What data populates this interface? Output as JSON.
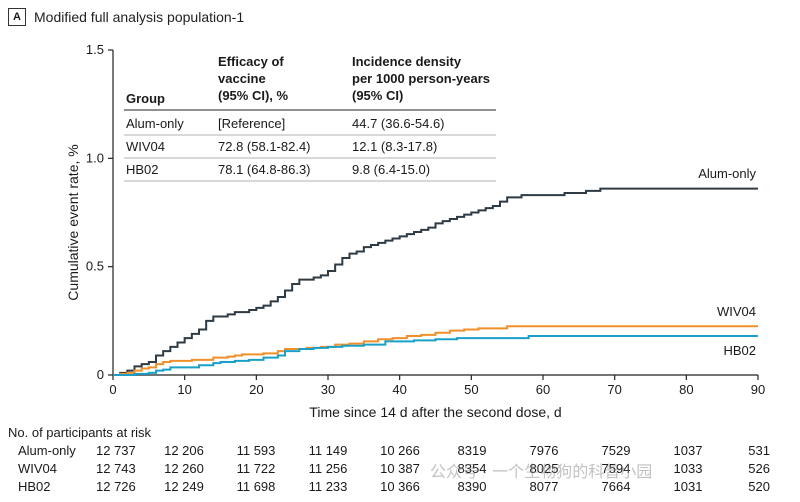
{
  "panel": {
    "letter": "A",
    "title": "Modified full analysis population-1"
  },
  "table": {
    "headers": {
      "group": "Group",
      "efficacy": [
        "Efficacy of",
        "vaccine",
        "(95% CI), %"
      ],
      "incidence": [
        "Incidence density",
        "per 1000 person-years",
        "(95% CI)"
      ]
    },
    "rows": [
      {
        "group": "Alum-only",
        "efficacy": "[Reference]",
        "incidence": "44.7 (36.6-54.6)"
      },
      {
        "group": "WIV04",
        "efficacy": "72.8 (58.1-82.4)",
        "incidence": "12.1 (8.3-17.8)"
      },
      {
        "group": "HB02",
        "efficacy": "78.1 (64.8-86.3)",
        "incidence": "9.8 (6.4-15.0)"
      }
    ]
  },
  "risk": {
    "title": "No. of participants at risk",
    "rows": [
      {
        "group": "Alum-only",
        "values": [
          "12 737",
          "12 206",
          "11 593",
          "11 149",
          "10 266",
          "8319",
          "7976",
          "7529",
          "1037",
          "531"
        ]
      },
      {
        "group": "WIV04",
        "values": [
          "12 743",
          "12 260",
          "11 722",
          "11 256",
          "10 387",
          "8354",
          "8025",
          "7594",
          "1033",
          "526"
        ]
      },
      {
        "group": "HB02",
        "values": [
          "12 726",
          "12 249",
          "11 698",
          "11 233",
          "10 366",
          "8390",
          "8077",
          "7664",
          "1031",
          "520"
        ]
      }
    ]
  },
  "watermark": "公众号 · 一个生物狗的科普小园",
  "chart_data": {
    "type": "line",
    "step": true,
    "xlabel": "Time since 14 d after the second dose, d",
    "ylabel": "Cumulative event rate, %",
    "xlim": [
      0,
      90
    ],
    "ylim": [
      0,
      1.5
    ],
    "xticks": [
      "0",
      "10",
      "20",
      "30",
      "40",
      "50",
      "60",
      "70",
      "80",
      "90"
    ],
    "yticks": [
      "0",
      "0.5",
      "1.0",
      "1.5"
    ],
    "grid": false,
    "series": [
      {
        "name": "Alum-only",
        "color": "#2e3a44",
        "points": [
          [
            0,
            0
          ],
          [
            1,
            0.01
          ],
          [
            2,
            0.02
          ],
          [
            3,
            0.04
          ],
          [
            4,
            0.05
          ],
          [
            5,
            0.06
          ],
          [
            6,
            0.09
          ],
          [
            7,
            0.11
          ],
          [
            8,
            0.13
          ],
          [
            9,
            0.15
          ],
          [
            10,
            0.17
          ],
          [
            11,
            0.19
          ],
          [
            12,
            0.21
          ],
          [
            13,
            0.25
          ],
          [
            14,
            0.27
          ],
          [
            15,
            0.27
          ],
          [
            16,
            0.28
          ],
          [
            17,
            0.29
          ],
          [
            18,
            0.29
          ],
          [
            19,
            0.3
          ],
          [
            20,
            0.31
          ],
          [
            21,
            0.32
          ],
          [
            22,
            0.34
          ],
          [
            23,
            0.36
          ],
          [
            24,
            0.39
          ],
          [
            25,
            0.42
          ],
          [
            26,
            0.44
          ],
          [
            27,
            0.44
          ],
          [
            28,
            0.45
          ],
          [
            29,
            0.46
          ],
          [
            30,
            0.48
          ],
          [
            31,
            0.51
          ],
          [
            32,
            0.54
          ],
          [
            33,
            0.56
          ],
          [
            34,
            0.57
          ],
          [
            35,
            0.59
          ],
          [
            36,
            0.6
          ],
          [
            37,
            0.61
          ],
          [
            38,
            0.62
          ],
          [
            39,
            0.63
          ],
          [
            40,
            0.64
          ],
          [
            41,
            0.65
          ],
          [
            42,
            0.66
          ],
          [
            43,
            0.67
          ],
          [
            44,
            0.68
          ],
          [
            45,
            0.7
          ],
          [
            46,
            0.71
          ],
          [
            47,
            0.72
          ],
          [
            48,
            0.73
          ],
          [
            49,
            0.74
          ],
          [
            50,
            0.75
          ],
          [
            51,
            0.76
          ],
          [
            52,
            0.77
          ],
          [
            53,
            0.78
          ],
          [
            54,
            0.8
          ],
          [
            55,
            0.82
          ],
          [
            56,
            0.82
          ],
          [
            57,
            0.83
          ],
          [
            58,
            0.83
          ],
          [
            59,
            0.83
          ],
          [
            60,
            0.83
          ],
          [
            61,
            0.83
          ],
          [
            62,
            0.83
          ],
          [
            63,
            0.84
          ],
          [
            64,
            0.84
          ],
          [
            65,
            0.84
          ],
          [
            66,
            0.85
          ],
          [
            67,
            0.85
          ],
          [
            68,
            0.86
          ],
          [
            69,
            0.86
          ],
          [
            70,
            0.86
          ],
          [
            72,
            0.86
          ],
          [
            80,
            0.86
          ],
          [
            90,
            0.86
          ]
        ]
      },
      {
        "name": "WIV04",
        "color": "#f0902a",
        "points": [
          [
            0,
            0
          ],
          [
            1,
            0.005
          ],
          [
            2,
            0.01
          ],
          [
            3,
            0.02
          ],
          [
            4,
            0.03
          ],
          [
            5,
            0.035
          ],
          [
            6,
            0.05
          ],
          [
            7,
            0.06
          ],
          [
            8,
            0.065
          ],
          [
            10,
            0.065
          ],
          [
            11,
            0.07
          ],
          [
            13,
            0.07
          ],
          [
            14,
            0.08
          ],
          [
            16,
            0.085
          ],
          [
            17,
            0.09
          ],
          [
            18,
            0.095
          ],
          [
            21,
            0.1
          ],
          [
            23,
            0.11
          ],
          [
            24,
            0.12
          ],
          [
            27,
            0.125
          ],
          [
            29,
            0.13
          ],
          [
            31,
            0.14
          ],
          [
            33,
            0.145
          ],
          [
            35,
            0.155
          ],
          [
            37,
            0.165
          ],
          [
            39,
            0.17
          ],
          [
            41,
            0.18
          ],
          [
            43,
            0.185
          ],
          [
            45,
            0.195
          ],
          [
            47,
            0.205
          ],
          [
            49,
            0.21
          ],
          [
            51,
            0.215
          ],
          [
            55,
            0.225
          ],
          [
            58,
            0.225
          ],
          [
            60,
            0.225
          ],
          [
            70,
            0.225
          ],
          [
            80,
            0.225
          ],
          [
            90,
            0.225
          ]
        ]
      },
      {
        "name": "HB02",
        "color": "#1aa0c8",
        "points": [
          [
            0,
            0
          ],
          [
            2,
            0.0
          ],
          [
            3,
            0.005
          ],
          [
            5,
            0.01
          ],
          [
            6,
            0.02
          ],
          [
            7,
            0.025
          ],
          [
            8,
            0.035
          ],
          [
            11,
            0.035
          ],
          [
            12,
            0.045
          ],
          [
            14,
            0.055
          ],
          [
            15,
            0.06
          ],
          [
            17,
            0.065
          ],
          [
            19,
            0.07
          ],
          [
            21,
            0.08
          ],
          [
            23,
            0.09
          ],
          [
            24,
            0.11
          ],
          [
            26,
            0.12
          ],
          [
            28,
            0.125
          ],
          [
            30,
            0.13
          ],
          [
            32,
            0.135
          ],
          [
            35,
            0.14
          ],
          [
            38,
            0.155
          ],
          [
            40,
            0.155
          ],
          [
            42,
            0.16
          ],
          [
            45,
            0.165
          ],
          [
            48,
            0.17
          ],
          [
            52,
            0.17
          ],
          [
            56,
            0.17
          ],
          [
            58,
            0.18
          ],
          [
            60,
            0.18
          ],
          [
            70,
            0.18
          ],
          [
            80,
            0.18
          ],
          [
            90,
            0.18
          ]
        ]
      }
    ]
  }
}
